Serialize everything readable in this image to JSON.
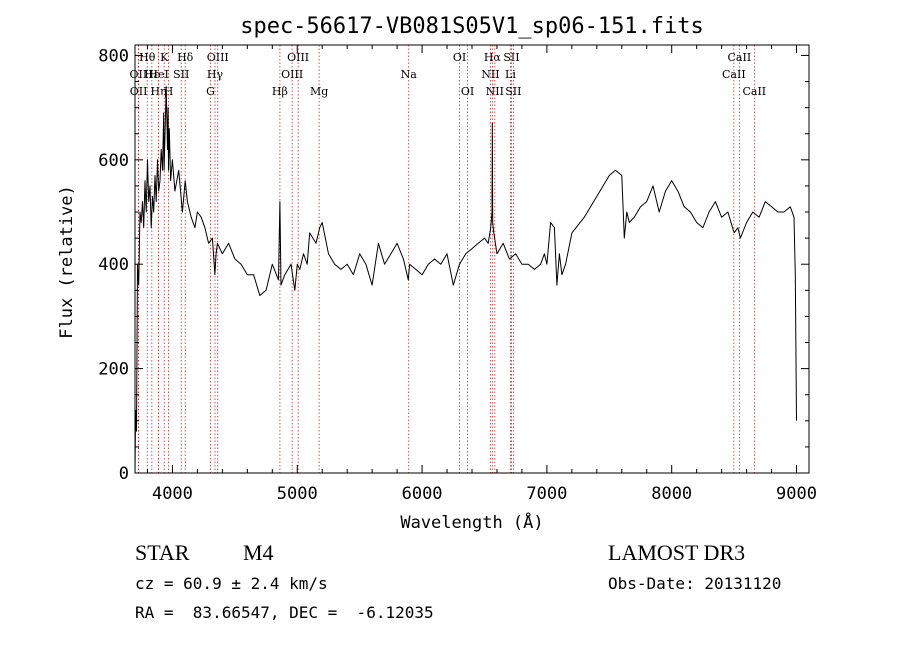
{
  "chart_data": {
    "type": "line",
    "title": "spec-56617-VB081S05V1_sp06-151.fits",
    "xlabel": "Wavelength (Å)",
    "ylabel": "Flux (relative)",
    "xlim": [
      3700,
      9100
    ],
    "ylim": [
      0,
      820
    ],
    "xticks": [
      4000,
      5000,
      6000,
      7000,
      8000,
      9000
    ],
    "yticks": [
      0,
      200,
      400,
      600,
      800
    ],
    "series": [
      {
        "name": "spectrum",
        "x": [
          3700,
          3705,
          3712,
          3720,
          3730,
          3740,
          3750,
          3760,
          3770,
          3780,
          3790,
          3800,
          3810,
          3820,
          3830,
          3840,
          3850,
          3860,
          3870,
          3880,
          3890,
          3900,
          3910,
          3920,
          3930,
          3933,
          3940,
          3950,
          3960,
          3965,
          3968,
          3975,
          3985,
          4000,
          4020,
          4050,
          4080,
          4102,
          4120,
          4150,
          4180,
          4200,
          4230,
          4260,
          4290,
          4320,
          4340,
          4350,
          4360,
          4380,
          4400,
          4450,
          4500,
          4550,
          4600,
          4650,
          4700,
          4750,
          4800,
          4850,
          4861,
          4870,
          4900,
          4950,
          4980,
          5000,
          5020,
          5050,
          5080,
          5100,
          5150,
          5180,
          5200,
          5250,
          5300,
          5350,
          5400,
          5450,
          5500,
          5550,
          5600,
          5650,
          5700,
          5750,
          5800,
          5850,
          5890,
          5900,
          5950,
          6000,
          6050,
          6100,
          6150,
          6200,
          6250,
          6300,
          6350,
          6400,
          6450,
          6500,
          6530,
          6550,
          6560,
          6563,
          6566,
          6575,
          6600,
          6650,
          6700,
          6750,
          6800,
          6850,
          6900,
          6950,
          6980,
          7000,
          7030,
          7060,
          7080,
          7100,
          7120,
          7150,
          7200,
          7300,
          7400,
          7500,
          7550,
          7600,
          7620,
          7640,
          7660,
          7700,
          7750,
          7800,
          7850,
          7900,
          7950,
          8000,
          8050,
          8100,
          8150,
          8200,
          8250,
          8300,
          8350,
          8400,
          8450,
          8500,
          8530,
          8550,
          8600,
          8650,
          8700,
          8750,
          8800,
          8850,
          8900,
          8950,
          8980,
          8990,
          9000
        ],
        "y": [
          0,
          120,
          80,
          400,
          360,
          500,
          480,
          520,
          470,
          560,
          500,
          600,
          520,
          550,
          470,
          530,
          500,
          570,
          520,
          600,
          540,
          560,
          620,
          580,
          690,
          580,
          650,
          740,
          620,
          700,
          580,
          660,
          560,
          600,
          540,
          580,
          500,
          560,
          520,
          490,
          470,
          500,
          490,
          470,
          440,
          450,
          380,
          420,
          440,
          430,
          420,
          440,
          410,
          400,
          380,
          380,
          340,
          350,
          400,
          370,
          520,
          360,
          380,
          400,
          350,
          400,
          390,
          420,
          400,
          460,
          440,
          470,
          480,
          420,
          400,
          390,
          400,
          380,
          420,
          400,
          360,
          440,
          400,
          420,
          440,
          410,
          370,
          400,
          390,
          380,
          400,
          410,
          400,
          420,
          360,
          400,
          420,
          430,
          440,
          450,
          440,
          470,
          500,
          670,
          480,
          460,
          420,
          440,
          410,
          420,
          400,
          400,
          390,
          400,
          420,
          400,
          480,
          470,
          360,
          420,
          380,
          400,
          460,
          490,
          530,
          570,
          580,
          570,
          450,
          500,
          480,
          490,
          510,
          520,
          550,
          500,
          540,
          560,
          540,
          510,
          500,
          480,
          470,
          500,
          520,
          490,
          500,
          460,
          470,
          450,
          480,
          500,
          490,
          520,
          510,
          500,
          500,
          510,
          490,
          380,
          100
        ]
      }
    ],
    "lines": [
      {
        "label": "Hθ",
        "x": 3798,
        "row": 0
      },
      {
        "label": "OII",
        "x": 3727,
        "row": 1
      },
      {
        "label": "OII",
        "x": 3729,
        "row": 2
      },
      {
        "label": "Hε",
        "x": 3835,
        "row": 1
      },
      {
        "label": "Hη",
        "x": 3889,
        "row": 2
      },
      {
        "label": "K",
        "x": 3934,
        "row": 0
      },
      {
        "label": "H",
        "x": 3969,
        "row": 2
      },
      {
        "label": "HeI",
        "x": 3889,
        "row": 1
      },
      {
        "label": "SII",
        "x": 4070,
        "row": 1
      },
      {
        "label": "Hδ",
        "x": 4102,
        "row": 0
      },
      {
        "label": "OIII",
        "x": 4363,
        "row": 0
      },
      {
        "label": "Hγ",
        "x": 4341,
        "row": 1
      },
      {
        "label": "G",
        "x": 4305,
        "row": 2
      },
      {
        "label": "Hβ",
        "x": 4861,
        "row": 2
      },
      {
        "label": "OIII",
        "x": 5007,
        "row": 0
      },
      {
        "label": "OIII",
        "x": 4959,
        "row": 1
      },
      {
        "label": "Mg",
        "x": 5175,
        "row": 2
      },
      {
        "label": "Na",
        "x": 5893,
        "row": 1
      },
      {
        "label": "OI",
        "x": 6300,
        "row": 0
      },
      {
        "label": "OI",
        "x": 6364,
        "row": 2
      },
      {
        "label": "Hα",
        "x": 6563,
        "row": 0
      },
      {
        "label": "NII",
        "x": 6548,
        "row": 1
      },
      {
        "label": "NII",
        "x": 6583,
        "row": 2
      },
      {
        "label": "SII",
        "x": 6716,
        "row": 0
      },
      {
        "label": "Li",
        "x": 6708,
        "row": 1
      },
      {
        "label": "SII",
        "x": 6731,
        "row": 2
      },
      {
        "label": "CaII",
        "x": 8542,
        "row": 0
      },
      {
        "label": "CaII",
        "x": 8498,
        "row": 1
      },
      {
        "label": "CaII",
        "x": 8662,
        "row": 2
      }
    ]
  },
  "footer": {
    "class": "STAR",
    "subclass": "M4",
    "cz": "cz = 60.9 ± 2.4 km/s",
    "radec": "RA =  83.66547, DEC =  -6.12035",
    "survey": "LAMOST DR3",
    "obsdate": "Obs-Date: 20131120"
  }
}
